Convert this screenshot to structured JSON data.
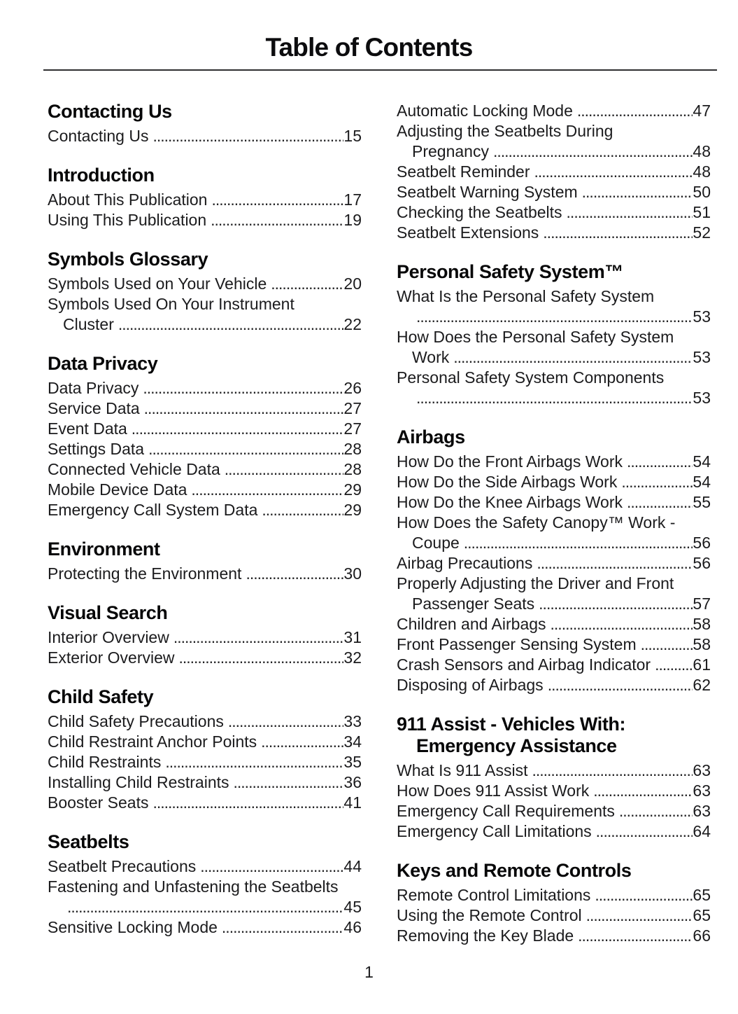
{
  "page": {
    "title": "Table of Contents",
    "page_number": "1"
  },
  "columns": {
    "left": {
      "sections": [
        {
          "heading": [
            "Contacting Us"
          ],
          "entries": [
            {
              "lines": [
                "Contacting Us"
              ],
              "page": "15"
            }
          ]
        },
        {
          "heading": [
            "Introduction"
          ],
          "entries": [
            {
              "lines": [
                "About This Publication"
              ],
              "page": "17"
            },
            {
              "lines": [
                "Using This Publication"
              ],
              "page": "19"
            }
          ]
        },
        {
          "heading": [
            "Symbols Glossary"
          ],
          "entries": [
            {
              "lines": [
                "Symbols Used on Your Vehicle"
              ],
              "page": "20"
            },
            {
              "lines": [
                "Symbols Used On Your Instrument",
                "Cluster"
              ],
              "page": "22"
            }
          ]
        },
        {
          "heading": [
            "Data Privacy"
          ],
          "entries": [
            {
              "lines": [
                "Data Privacy"
              ],
              "page": "26"
            },
            {
              "lines": [
                "Service Data"
              ],
              "page": "27"
            },
            {
              "lines": [
                "Event Data"
              ],
              "page": "27"
            },
            {
              "lines": [
                "Settings Data"
              ],
              "page": "28"
            },
            {
              "lines": [
                "Connected Vehicle Data"
              ],
              "page": "28"
            },
            {
              "lines": [
                "Mobile Device Data"
              ],
              "page": "29"
            },
            {
              "lines": [
                "Emergency Call System Data"
              ],
              "page": "29"
            }
          ]
        },
        {
          "heading": [
            "Environment"
          ],
          "entries": [
            {
              "lines": [
                "Protecting the Environment"
              ],
              "page": "30"
            }
          ]
        },
        {
          "heading": [
            "Visual Search"
          ],
          "entries": [
            {
              "lines": [
                "Interior Overview"
              ],
              "page": "31"
            },
            {
              "lines": [
                "Exterior Overview"
              ],
              "page": "32"
            }
          ]
        },
        {
          "heading": [
            "Child Safety"
          ],
          "entries": [
            {
              "lines": [
                "Child Safety Precautions"
              ],
              "page": "33"
            },
            {
              "lines": [
                "Child Restraint Anchor Points"
              ],
              "page": "34"
            },
            {
              "lines": [
                "Child Restraints"
              ],
              "page": "35"
            },
            {
              "lines": [
                "Installing Child Restraints"
              ],
              "page": "36"
            },
            {
              "lines": [
                "Booster Seats"
              ],
              "page": "41"
            }
          ]
        },
        {
          "heading": [
            "Seatbelts"
          ],
          "entries": [
            {
              "lines": [
                "Seatbelt Precautions"
              ],
              "page": "44"
            },
            {
              "lines": [
                "Fastening and Unfastening the Seatbelts",
                ""
              ],
              "page": "45"
            },
            {
              "lines": [
                "Sensitive Locking Mode"
              ],
              "page": "46"
            }
          ]
        }
      ]
    },
    "right": {
      "sections": [
        {
          "heading": [],
          "entries": [
            {
              "lines": [
                "Automatic Locking Mode"
              ],
              "page": "47"
            },
            {
              "lines": [
                "Adjusting the Seatbelts During",
                "Pregnancy"
              ],
              "page": "48"
            },
            {
              "lines": [
                "Seatbelt Reminder"
              ],
              "page": "48"
            },
            {
              "lines": [
                "Seatbelt Warning System"
              ],
              "page": "50"
            },
            {
              "lines": [
                "Checking the Seatbelts"
              ],
              "page": "51"
            },
            {
              "lines": [
                "Seatbelt Extensions"
              ],
              "page": "52"
            }
          ]
        },
        {
          "heading": [
            "Personal Safety System™"
          ],
          "entries": [
            {
              "lines": [
                "What Is the Personal Safety System",
                ""
              ],
              "page": "53"
            },
            {
              "lines": [
                "How Does the Personal Safety System",
                "Work"
              ],
              "page": "53"
            },
            {
              "lines": [
                "Personal Safety System Components",
                ""
              ],
              "page": "53"
            }
          ]
        },
        {
          "heading": [
            "Airbags"
          ],
          "entries": [
            {
              "lines": [
                "How Do the Front Airbags Work"
              ],
              "page": "54"
            },
            {
              "lines": [
                "How Do the Side Airbags Work"
              ],
              "page": "54"
            },
            {
              "lines": [
                "How Do the Knee Airbags Work"
              ],
              "page": "55"
            },
            {
              "lines": [
                "How Does the Safety Canopy™ Work -",
                "Coupe"
              ],
              "page": "56"
            },
            {
              "lines": [
                "Airbag Precautions"
              ],
              "page": "56"
            },
            {
              "lines": [
                "Properly Adjusting the Driver and Front",
                "Passenger Seats"
              ],
              "page": "57"
            },
            {
              "lines": [
                "Children and Airbags"
              ],
              "page": "58"
            },
            {
              "lines": [
                "Front Passenger Sensing System"
              ],
              "page": "58"
            },
            {
              "lines": [
                "Crash Sensors and Airbag Indicator"
              ],
              "page": "61"
            },
            {
              "lines": [
                "Disposing of Airbags"
              ],
              "page": "62"
            }
          ]
        },
        {
          "heading": [
            "911 Assist - Vehicles With:",
            "Emergency Assistance"
          ],
          "entries": [
            {
              "lines": [
                "What Is 911 Assist"
              ],
              "page": "63"
            },
            {
              "lines": [
                "How Does 911 Assist Work"
              ],
              "page": "63"
            },
            {
              "lines": [
                "Emergency Call Requirements"
              ],
              "page": "63"
            },
            {
              "lines": [
                "Emergency Call Limitations"
              ],
              "page": "64"
            }
          ]
        },
        {
          "heading": [
            "Keys and Remote Controls"
          ],
          "entries": [
            {
              "lines": [
                "Remote Control Limitations"
              ],
              "page": "65"
            },
            {
              "lines": [
                "Using the Remote Control"
              ],
              "page": "65"
            },
            {
              "lines": [
                "Removing the Key Blade"
              ],
              "page": "66"
            }
          ]
        }
      ]
    }
  }
}
